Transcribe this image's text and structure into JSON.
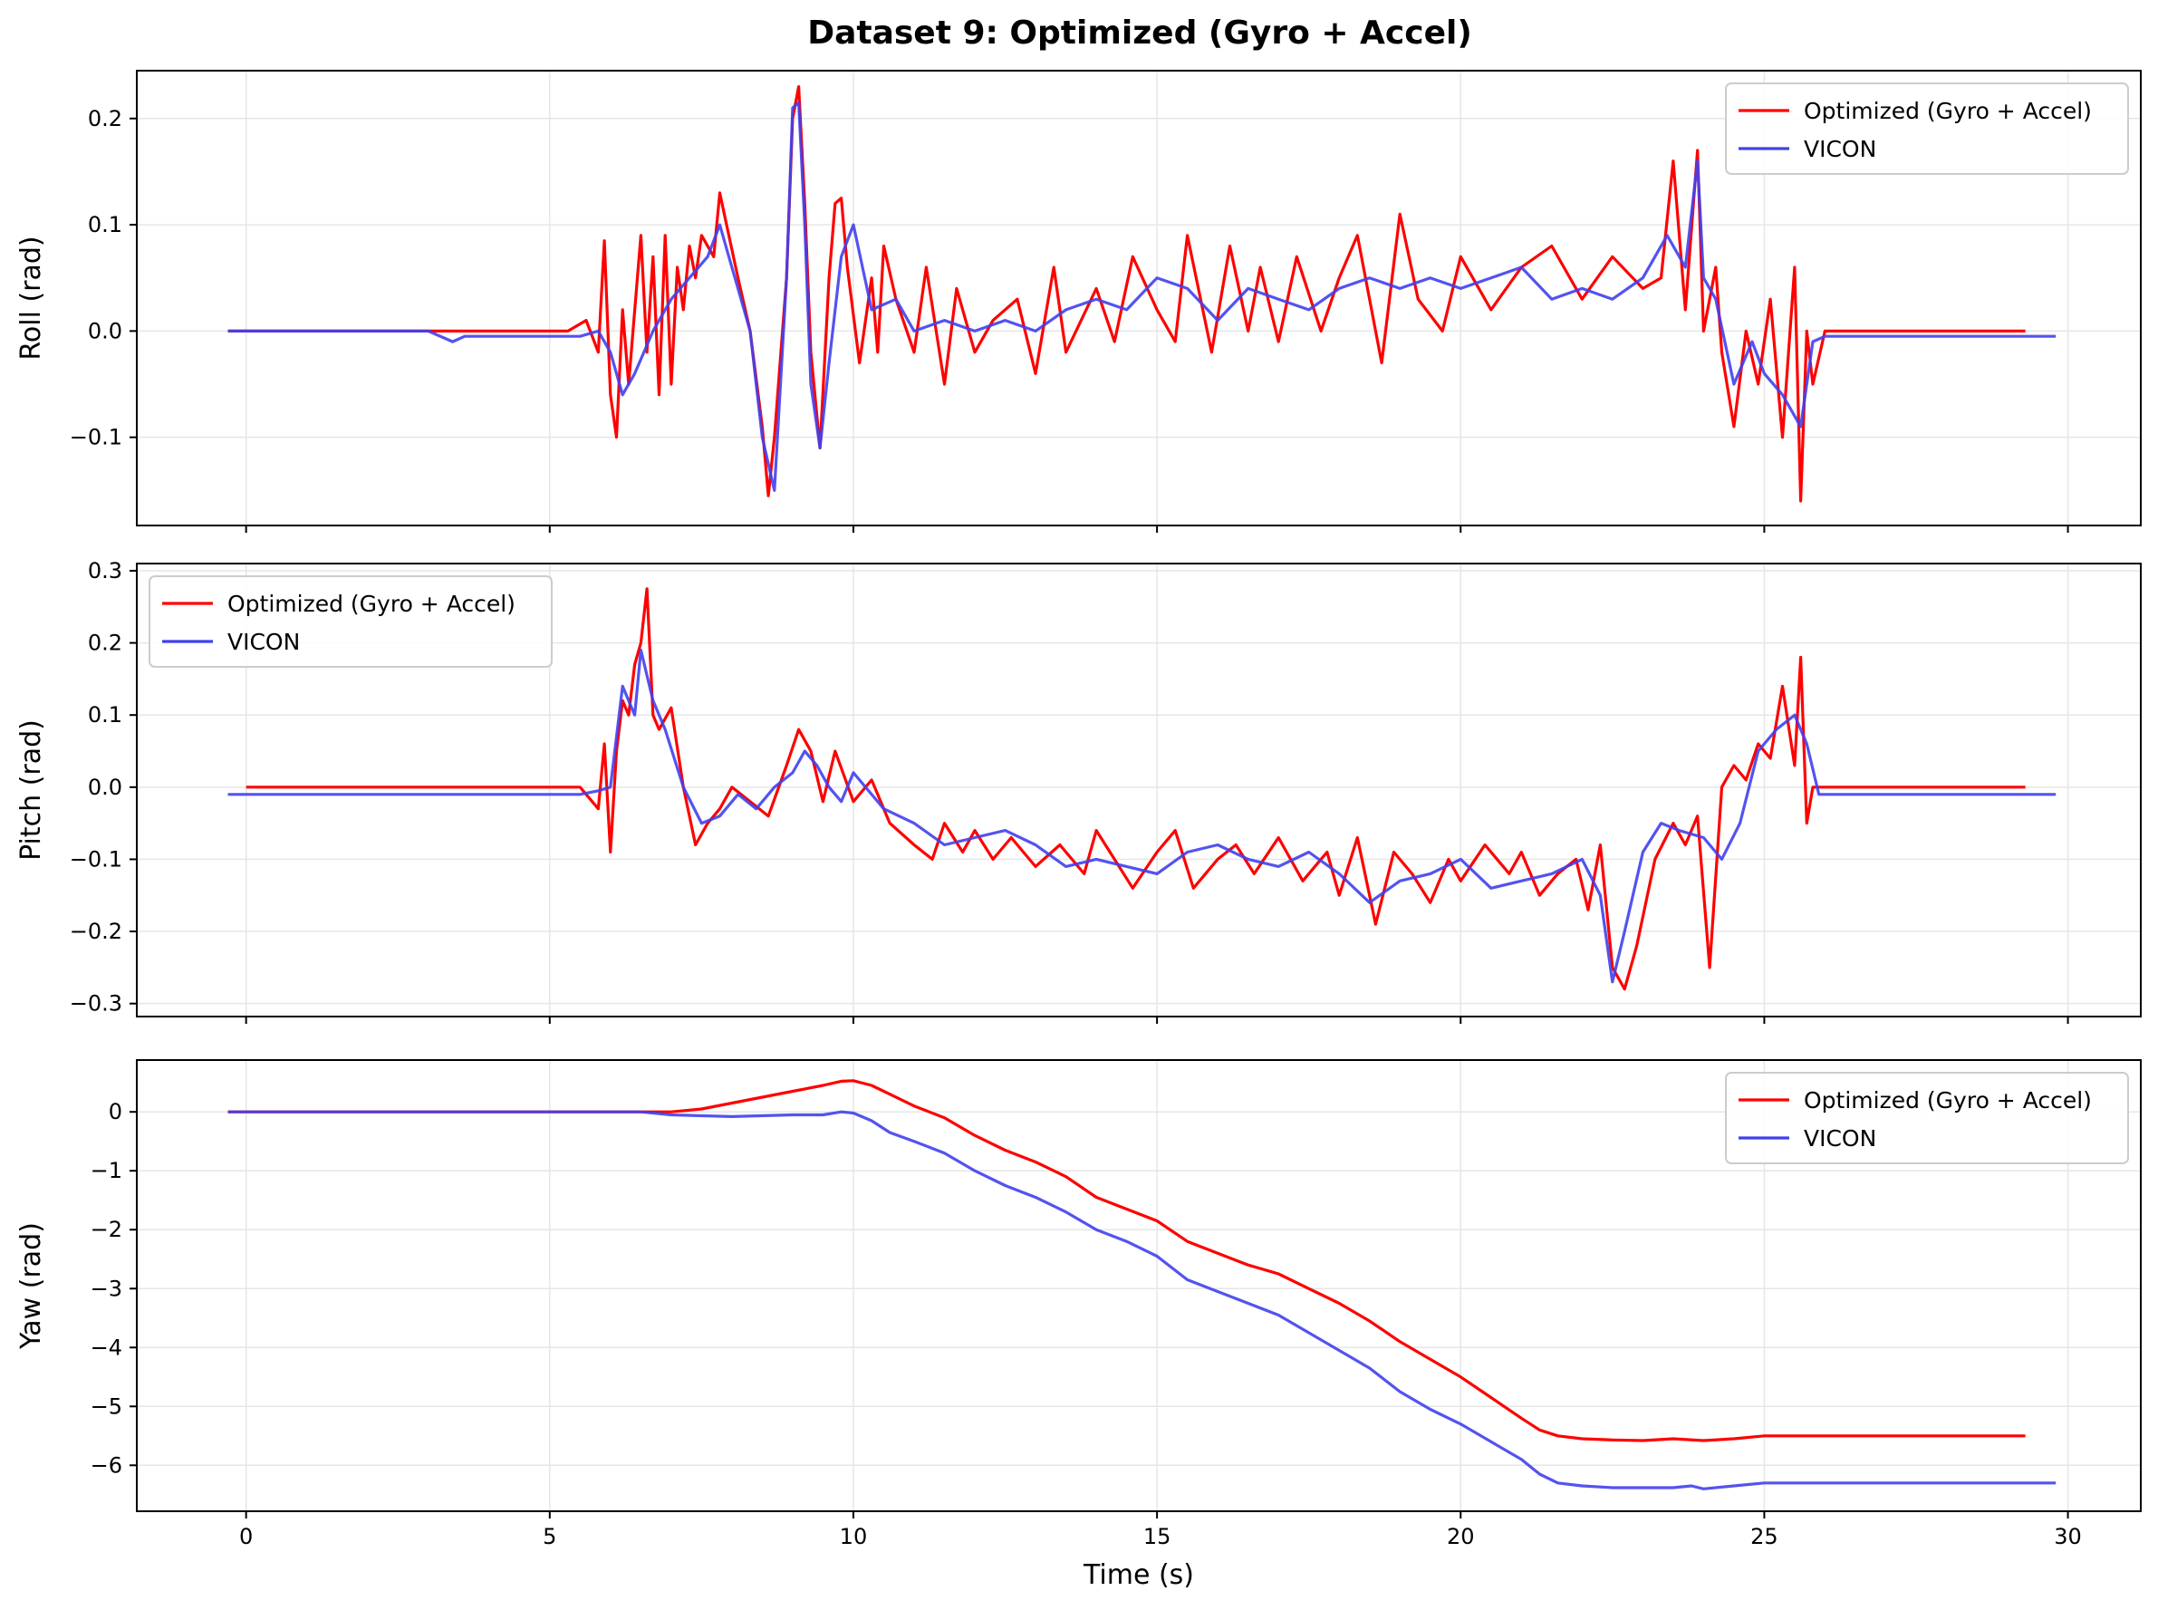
{
  "figure": {
    "title": "Dataset 9: Optimized (Gyro + Accel)"
  },
  "colors": {
    "optimized": "#ff0000",
    "vicon": "#4040ee",
    "grid": "#e6e6e6",
    "axes": "#000000"
  },
  "chart_data": [
    {
      "type": "line",
      "name": "roll",
      "ylabel": "Roll (rad)",
      "xlabel": "",
      "xlim": [
        -1.8,
        31.2
      ],
      "ylim": [
        -0.183,
        0.245
      ],
      "xticks": [
        0,
        5,
        10,
        15,
        20,
        25,
        30
      ],
      "yticks": [
        -0.1,
        0.0,
        0.1,
        0.2
      ],
      "ytick_labels": [
        "−0.1",
        "0.0",
        "0.1",
        "0.2"
      ],
      "legend": {
        "position": "upper-right"
      },
      "grid": true,
      "series": [
        {
          "name": "Optimized (Gyro + Accel)",
          "color": "#ff0000",
          "x": [
            -0.3,
            0,
            1,
            2,
            3,
            4,
            5,
            5.3,
            5.6,
            5.8,
            5.9,
            6.0,
            6.1,
            6.2,
            6.3,
            6.5,
            6.6,
            6.7,
            6.8,
            6.9,
            7.0,
            7.1,
            7.2,
            7.3,
            7.4,
            7.5,
            7.7,
            7.8,
            7.95,
            8.1,
            8.3,
            8.5,
            8.6,
            8.7,
            8.9,
            9.0,
            9.1,
            9.2,
            9.3,
            9.45,
            9.6,
            9.7,
            9.8,
            9.9,
            10.1,
            10.3,
            10.4,
            10.5,
            10.7,
            11.0,
            11.2,
            11.5,
            11.7,
            12.0,
            12.3,
            12.7,
            13.0,
            13.3,
            13.5,
            14.0,
            14.3,
            14.6,
            15.0,
            15.3,
            15.5,
            15.9,
            16.2,
            16.5,
            16.7,
            17.0,
            17.3,
            17.7,
            18.0,
            18.3,
            18.7,
            19.0,
            19.3,
            19.7,
            20.0,
            20.5,
            21.0,
            21.5,
            22.0,
            22.5,
            23.0,
            23.3,
            23.5,
            23.7,
            23.9,
            24.0,
            24.2,
            24.3,
            24.5,
            24.7,
            24.9,
            25.1,
            25.3,
            25.5,
            25.6,
            25.7,
            25.8,
            26.0,
            27,
            28,
            29,
            29.3
          ],
          "y": [
            0.0,
            0.0,
            0.0,
            0.0,
            0.0,
            0.0,
            0.0,
            0.0,
            0.01,
            -0.02,
            0.085,
            -0.06,
            -0.1,
            0.02,
            -0.05,
            0.09,
            -0.02,
            0.07,
            -0.06,
            0.09,
            -0.05,
            0.06,
            0.02,
            0.08,
            0.05,
            0.09,
            0.07,
            0.13,
            0.09,
            0.05,
            0.0,
            -0.09,
            -0.155,
            -0.1,
            0.05,
            0.2,
            0.23,
            0.12,
            -0.02,
            -0.11,
            0.05,
            0.12,
            0.125,
            0.06,
            -0.03,
            0.05,
            -0.02,
            0.08,
            0.03,
            -0.02,
            0.06,
            -0.05,
            0.04,
            -0.02,
            0.01,
            0.03,
            -0.04,
            0.06,
            -0.02,
            0.04,
            -0.01,
            0.07,
            0.02,
            -0.01,
            0.09,
            -0.02,
            0.08,
            0.0,
            0.06,
            -0.01,
            0.07,
            0.0,
            0.05,
            0.09,
            -0.03,
            0.11,
            0.03,
            0.0,
            0.07,
            0.02,
            0.06,
            0.08,
            0.03,
            0.07,
            0.04,
            0.05,
            0.16,
            0.02,
            0.17,
            0.0,
            0.06,
            -0.02,
            -0.09,
            0.0,
            -0.05,
            0.03,
            -0.1,
            0.06,
            -0.16,
            0.0,
            -0.05,
            0.0,
            0.0,
            0.0,
            0.0,
            0.0
          ]
        },
        {
          "name": "VICON",
          "color": "#4040ee",
          "x": [
            -0.3,
            0,
            1,
            2,
            3,
            3.4,
            3.6,
            4,
            5,
            5.5,
            5.8,
            6.0,
            6.2,
            6.4,
            6.7,
            7.0,
            7.3,
            7.6,
            7.8,
            7.95,
            8.1,
            8.3,
            8.5,
            8.7,
            8.9,
            9.0,
            9.1,
            9.2,
            9.3,
            9.45,
            9.6,
            9.8,
            10.0,
            10.3,
            10.7,
            11.0,
            11.5,
            12.0,
            12.5,
            13.0,
            13.5,
            14.0,
            14.5,
            15.0,
            15.5,
            16.0,
            16.5,
            17.0,
            17.5,
            18.0,
            18.5,
            19.0,
            19.5,
            20.0,
            20.5,
            21.0,
            21.5,
            22.0,
            22.5,
            23.0,
            23.4,
            23.7,
            23.9,
            24.0,
            24.2,
            24.5,
            24.8,
            25.0,
            25.3,
            25.6,
            25.8,
            26.0,
            27,
            28,
            29,
            29.8
          ],
          "y": [
            0.0,
            0.0,
            0.0,
            0.0,
            0.0,
            -0.01,
            -0.005,
            -0.005,
            -0.005,
            -0.005,
            0.0,
            -0.02,
            -0.06,
            -0.04,
            0.0,
            0.03,
            0.05,
            0.07,
            0.1,
            0.07,
            0.04,
            0.0,
            -0.1,
            -0.15,
            0.05,
            0.21,
            0.215,
            0.1,
            -0.05,
            -0.11,
            -0.03,
            0.07,
            0.1,
            0.02,
            0.03,
            0.0,
            0.01,
            0.0,
            0.01,
            0.0,
            0.02,
            0.03,
            0.02,
            0.05,
            0.04,
            0.01,
            0.04,
            0.03,
            0.02,
            0.04,
            0.05,
            0.04,
            0.05,
            0.04,
            0.05,
            0.06,
            0.03,
            0.04,
            0.03,
            0.05,
            0.09,
            0.06,
            0.16,
            0.05,
            0.03,
            -0.05,
            -0.01,
            -0.04,
            -0.06,
            -0.09,
            -0.01,
            -0.005,
            -0.005,
            -0.005,
            -0.005,
            -0.005
          ]
        }
      ]
    },
    {
      "type": "line",
      "name": "pitch",
      "ylabel": "Pitch (rad)",
      "xlabel": "",
      "xlim": [
        -1.8,
        31.2
      ],
      "ylim": [
        -0.318,
        0.31
      ],
      "xticks": [
        0,
        5,
        10,
        15,
        20,
        25,
        30
      ],
      "yticks": [
        -0.3,
        -0.2,
        -0.1,
        0.0,
        0.1,
        0.2,
        0.3
      ],
      "ytick_labels": [
        "−0.3",
        "−0.2",
        "−0.1",
        "0.0",
        "0.1",
        "0.2",
        "0.3"
      ],
      "legend": {
        "position": "upper-left"
      },
      "grid": true,
      "series": [
        {
          "name": "Optimized (Gyro + Accel)",
          "color": "#ff0000",
          "x": [
            0,
            1,
            2,
            3,
            4,
            5,
            5.5,
            5.8,
            5.9,
            6.0,
            6.1,
            6.2,
            6.3,
            6.4,
            6.5,
            6.6,
            6.7,
            6.8,
            7.0,
            7.2,
            7.4,
            7.6,
            7.8,
            8.0,
            8.3,
            8.6,
            8.9,
            9.1,
            9.3,
            9.5,
            9.7,
            10.0,
            10.3,
            10.6,
            11.0,
            11.3,
            11.5,
            11.8,
            12.0,
            12.3,
            12.6,
            13.0,
            13.4,
            13.8,
            14.0,
            14.3,
            14.6,
            15.0,
            15.3,
            15.6,
            16.0,
            16.3,
            16.6,
            17.0,
            17.4,
            17.8,
            18.0,
            18.3,
            18.6,
            18.9,
            19.2,
            19.5,
            19.8,
            20.0,
            20.4,
            20.8,
            21.0,
            21.3,
            21.6,
            21.9,
            22.1,
            22.3,
            22.5,
            22.7,
            22.9,
            23.2,
            23.5,
            23.7,
            23.9,
            24.1,
            24.3,
            24.5,
            24.7,
            24.9,
            25.1,
            25.3,
            25.5,
            25.6,
            25.7,
            25.8,
            26.0,
            27,
            28,
            29,
            29.3
          ],
          "y": [
            0.0,
            0.0,
            0.0,
            0.0,
            0.0,
            0.0,
            0.0,
            -0.03,
            0.06,
            -0.09,
            0.05,
            0.12,
            0.1,
            0.17,
            0.2,
            0.275,
            0.1,
            0.08,
            0.11,
            0.0,
            -0.08,
            -0.05,
            -0.03,
            0.0,
            -0.02,
            -0.04,
            0.03,
            0.08,
            0.05,
            -0.02,
            0.05,
            -0.02,
            0.01,
            -0.05,
            -0.08,
            -0.1,
            -0.05,
            -0.09,
            -0.06,
            -0.1,
            -0.07,
            -0.11,
            -0.08,
            -0.12,
            -0.06,
            -0.1,
            -0.14,
            -0.09,
            -0.06,
            -0.14,
            -0.1,
            -0.08,
            -0.12,
            -0.07,
            -0.13,
            -0.09,
            -0.15,
            -0.07,
            -0.19,
            -0.09,
            -0.12,
            -0.16,
            -0.1,
            -0.13,
            -0.08,
            -0.12,
            -0.09,
            -0.15,
            -0.12,
            -0.1,
            -0.17,
            -0.08,
            -0.25,
            -0.28,
            -0.22,
            -0.1,
            -0.05,
            -0.08,
            -0.04,
            -0.25,
            0.0,
            0.03,
            0.01,
            0.06,
            0.04,
            0.14,
            0.03,
            0.18,
            -0.05,
            0.0,
            0.0,
            0.0,
            0.0,
            0.0,
            0.0
          ]
        },
        {
          "name": "VICON",
          "color": "#4040ee",
          "x": [
            -0.3,
            0,
            1,
            2,
            3,
            4,
            5,
            5.5,
            5.8,
            6.0,
            6.2,
            6.4,
            6.5,
            6.7,
            6.9,
            7.2,
            7.5,
            7.8,
            8.1,
            8.4,
            8.7,
            9.0,
            9.2,
            9.4,
            9.6,
            9.8,
            10.0,
            10.5,
            11.0,
            11.5,
            12.0,
            12.5,
            13.0,
            13.5,
            14.0,
            14.5,
            15.0,
            15.5,
            16.0,
            16.5,
            17.0,
            17.5,
            18.0,
            18.5,
            19.0,
            19.5,
            20.0,
            20.5,
            21.0,
            21.5,
            22.0,
            22.3,
            22.5,
            22.7,
            23.0,
            23.3,
            23.6,
            24.0,
            24.3,
            24.6,
            24.9,
            25.2,
            25.5,
            25.7,
            25.9,
            26.0,
            27,
            28,
            29,
            29.8
          ],
          "y": [
            -0.01,
            -0.01,
            -0.01,
            -0.01,
            -0.01,
            -0.01,
            -0.01,
            -0.01,
            -0.005,
            0.0,
            0.14,
            0.1,
            0.19,
            0.12,
            0.08,
            0.0,
            -0.05,
            -0.04,
            -0.01,
            -0.03,
            0.0,
            0.02,
            0.05,
            0.03,
            0.0,
            -0.02,
            0.02,
            -0.03,
            -0.05,
            -0.08,
            -0.07,
            -0.06,
            -0.08,
            -0.11,
            -0.1,
            -0.11,
            -0.12,
            -0.09,
            -0.08,
            -0.1,
            -0.11,
            -0.09,
            -0.12,
            -0.16,
            -0.13,
            -0.12,
            -0.1,
            -0.14,
            -0.13,
            -0.12,
            -0.1,
            -0.15,
            -0.27,
            -0.2,
            -0.09,
            -0.05,
            -0.06,
            -0.07,
            -0.1,
            -0.05,
            0.05,
            0.08,
            0.1,
            0.06,
            -0.01,
            -0.01,
            -0.01,
            -0.01,
            -0.01,
            -0.01
          ]
        }
      ]
    },
    {
      "type": "line",
      "name": "yaw",
      "ylabel": "Yaw (rad)",
      "xlabel": "Time (s)",
      "xlim": [
        -1.8,
        31.2
      ],
      "ylim": [
        -6.78,
        0.88
      ],
      "xticks": [
        0,
        5,
        10,
        15,
        20,
        25,
        30
      ],
      "yticks": [
        -6,
        -5,
        -4,
        -3,
        -2,
        -1,
        0
      ],
      "ytick_labels": [
        "−6",
        "−5",
        "−4",
        "−3",
        "−2",
        "−1",
        "0"
      ],
      "legend": {
        "position": "upper-right"
      },
      "grid": true,
      "series": [
        {
          "name": "Optimized (Gyro + Accel)",
          "color": "#ff0000",
          "x": [
            -0.3,
            2,
            4,
            5,
            6,
            6.5,
            7,
            7.5,
            8,
            8.5,
            9,
            9.5,
            9.8,
            10.0,
            10.3,
            10.6,
            11,
            11.5,
            12,
            12.5,
            13,
            13.5,
            14,
            14.5,
            15,
            15.5,
            16,
            16.5,
            17,
            17.5,
            18,
            18.5,
            19,
            19.5,
            20,
            20.5,
            21,
            21.3,
            21.6,
            22,
            22.5,
            23,
            23.5,
            24,
            24.5,
            25,
            26,
            27,
            28,
            29,
            29.3
          ],
          "y": [
            0.0,
            0.0,
            0.0,
            0.0,
            0.0,
            0.0,
            0.0,
            0.05,
            0.15,
            0.25,
            0.35,
            0.45,
            0.52,
            0.53,
            0.45,
            0.3,
            0.1,
            -0.1,
            -0.4,
            -0.65,
            -0.85,
            -1.1,
            -1.45,
            -1.65,
            -1.85,
            -2.2,
            -2.4,
            -2.6,
            -2.75,
            -3.0,
            -3.25,
            -3.55,
            -3.9,
            -4.2,
            -4.5,
            -4.85,
            -5.2,
            -5.4,
            -5.5,
            -5.55,
            -5.57,
            -5.58,
            -5.55,
            -5.58,
            -5.55,
            -5.5,
            -5.5,
            -5.5,
            -5.5,
            -5.5,
            -5.5
          ]
        },
        {
          "name": "VICON",
          "color": "#4040ee",
          "x": [
            -0.3,
            2,
            4,
            5,
            6,
            6.5,
            7,
            8,
            9,
            9.5,
            9.8,
            10.0,
            10.3,
            10.6,
            11,
            11.5,
            12,
            12.5,
            13,
            13.5,
            14,
            14.5,
            15,
            15.5,
            16,
            16.5,
            17,
            17.5,
            18,
            18.5,
            19,
            19.5,
            20,
            20.5,
            21,
            21.3,
            21.6,
            22,
            22.5,
            23,
            23.5,
            23.8,
            24,
            24.5,
            25,
            26,
            27,
            28,
            29,
            29.8
          ],
          "y": [
            0.0,
            0.0,
            0.0,
            0.0,
            0.0,
            0.0,
            -0.05,
            -0.08,
            -0.05,
            -0.05,
            0.0,
            -0.02,
            -0.15,
            -0.35,
            -0.5,
            -0.7,
            -1.0,
            -1.25,
            -1.45,
            -1.7,
            -2.0,
            -2.2,
            -2.45,
            -2.85,
            -3.05,
            -3.25,
            -3.45,
            -3.75,
            -4.05,
            -4.35,
            -4.75,
            -5.05,
            -5.3,
            -5.6,
            -5.9,
            -6.15,
            -6.3,
            -6.35,
            -6.38,
            -6.38,
            -6.38,
            -6.35,
            -6.4,
            -6.35,
            -6.3,
            -6.3,
            -6.3,
            -6.3,
            -6.3,
            -6.3
          ]
        }
      ]
    }
  ]
}
